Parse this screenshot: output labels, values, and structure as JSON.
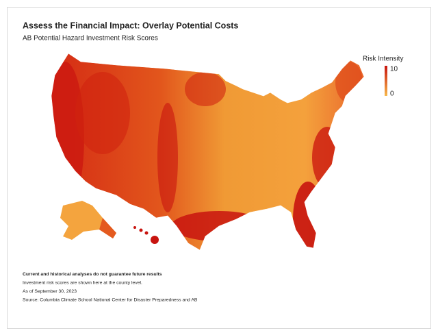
{
  "header": {
    "title": "Assess the Financial Impact: Overlay Potential Costs",
    "subtitle": "AB Potential Hazard Investment Risk Scores"
  },
  "legend": {
    "title": "Risk Intensity",
    "max": 10,
    "min": 0,
    "colors": [
      "#c8140f",
      "#f7b84a"
    ]
  },
  "notes": [
    "Current and historical analyses do not guarantee future results",
    "Investment risk scores are shown here at the county level.",
    "As of September 30, 2023",
    "Source: Columbia Climate School National Center for Disaster Preparedness and AB"
  ]
}
